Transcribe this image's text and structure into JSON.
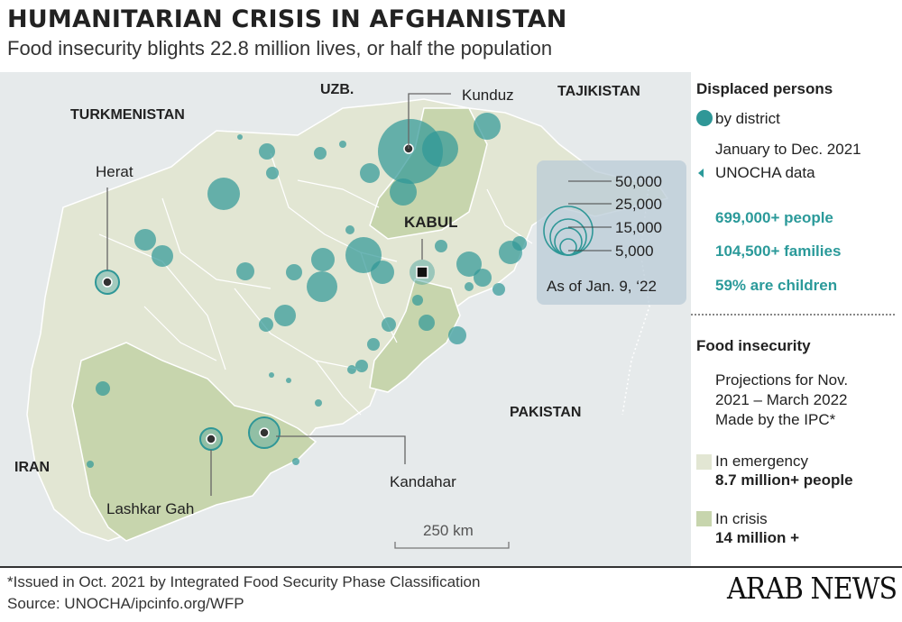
{
  "title": "HUMANITARIAN CRISIS IN AFGHANISTAN",
  "subtitle": "Food insecurity blights 22.8 million lives, or half the population",
  "map": {
    "countries": [
      "UZB.",
      "TAJIKISTAN",
      "TURKMENISTAN",
      "IRAN",
      "PAKISTAN"
    ],
    "cities": [
      "Kunduz",
      "Herat",
      "KABUL",
      "Lashkar Gah",
      "Kandahar"
    ],
    "size_legend": [
      "50,000",
      "25,000",
      "15,000",
      "5,000"
    ],
    "as_of": "As of Jan. 9, ‘22",
    "scale_label": "250 km"
  },
  "legend": {
    "displaced_title": "Displaced persons",
    "by_district": "by district",
    "period": "January to Dec. 2021",
    "source": "UNOCHA data",
    "stats": [
      "699,000+ people",
      "104,500+ families",
      "59% are children"
    ],
    "food_title": "Food insecurity",
    "projection_lines": [
      "Projections for Nov.",
      "2021 – March 2022",
      "Made by the IPC*"
    ],
    "emergency_label": "In emergency",
    "emergency_value": "8.7 million+ people",
    "crisis_label": "In crisis",
    "crisis_value": "14 million +"
  },
  "colors": {
    "emergency": "#e2e6d3",
    "crisis": "#c7d5ad",
    "displaced": "#2f9797"
  },
  "footer": {
    "note": "*Issued in Oct. 2021 by Integrated Food Security Phase Classification",
    "source": "Source: UNOCHA/ipcinfo.org/WFP"
  },
  "brand": "ARAB NEWS"
}
